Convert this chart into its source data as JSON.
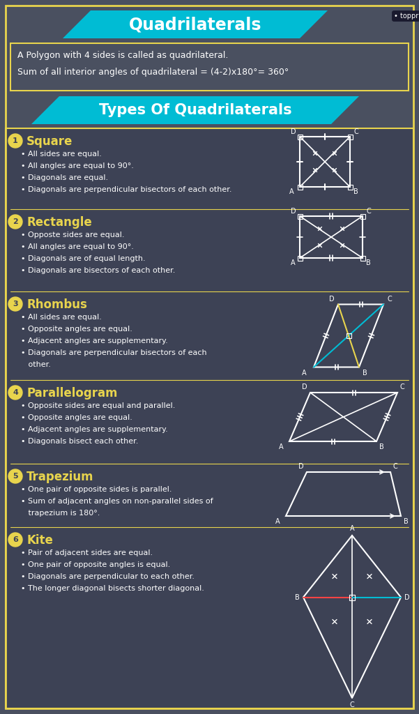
{
  "title": "Quadrilaterals",
  "subtitle1": "A Polygon with 4 sides is called as quadrilateral.",
  "subtitle2": "Sum of all interior angles of quadrilateral = (4-2)x180°= 360°",
  "section_title": "Types Of Quadrilaterals",
  "bg_color": "#4a5060",
  "header_color": "#00bcd4",
  "yellow": "#e8d44d",
  "cyan": "#00bcd4",
  "white": "#ffffff",
  "dark_bg": "#3d4255",
  "types": [
    {
      "num": "1",
      "name": "Square",
      "props": [
        "• All sides are equal.",
        "• All angles are equal to 90°.",
        "• Diagonals are equal.",
        "• Diagonals are perpendicular bisectors of each other."
      ]
    },
    {
      "num": "2",
      "name": "Rectangle",
      "props": [
        "• Opposte sides are equal.",
        "• All angles are equal to 90°.",
        "• Diagonals are of equal length.",
        "• Diagonals are bisectors of each other."
      ]
    },
    {
      "num": "3",
      "name": "Rhombus",
      "props": [
        "• All sides are equal.",
        "• Opposite angles are equal.",
        "• Adjacent angles are supplementary.",
        "• Diagonals are perpendicular bisectors of each",
        "   other."
      ]
    },
    {
      "num": "4",
      "name": "Parallelogram",
      "props": [
        "• Opposite sides are equal and parallel.",
        "• Opposite angles are equal.",
        "• Adjacent angles are supplementary.",
        "• Diagonals bisect each other."
      ]
    },
    {
      "num": "5",
      "name": "Trapezium",
      "props": [
        "• One pair of opposite sides is parallel.",
        "• Sum of adjacent angles on non-parallel sides of",
        "   trapezium is 180°."
      ]
    },
    {
      "num": "6",
      "name": "Kite",
      "props": [
        "• Pair of adjacent sides are equal.",
        "• One pair of opposite angles is equal.",
        "• Diagonals are perpendicular to each other.",
        "• The longer diagonal bisects shorter diagonal."
      ]
    }
  ]
}
